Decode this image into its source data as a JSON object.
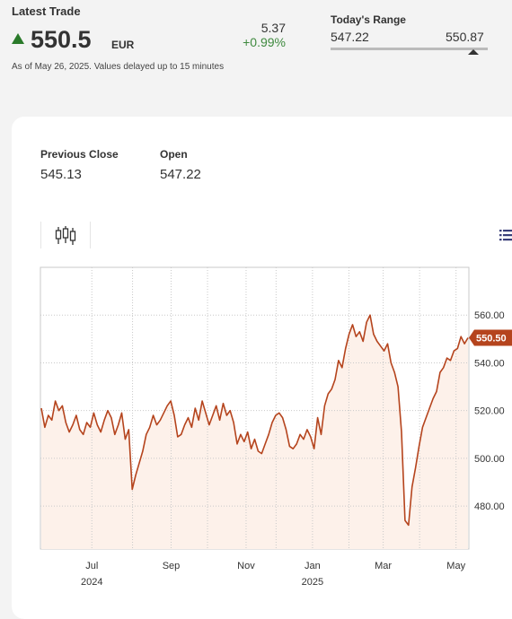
{
  "quote": {
    "latest_trade_label": "Latest Trade",
    "price": "550.5",
    "currency": "EUR",
    "change": "5.37",
    "change_pct": "+0.99%",
    "as_of": "As of May 26, 2025. Values delayed up to 15 minutes",
    "direction_icon": "up-triangle-icon",
    "up_color": "#2a7a2a"
  },
  "range": {
    "label": "Today's Range",
    "low": "547.22",
    "high": "550.87",
    "position": 0.91
  },
  "stats": {
    "prev_close_label": "Previous Close",
    "prev_close": "545.13",
    "open_label": "Open",
    "open": "547.22"
  },
  "toolbar": {
    "chart_type_icon": "candlestick-icon",
    "menu_icon": "list-menu-icon"
  },
  "chart_data": {
    "type": "area",
    "line_color": "#b5441d",
    "fill_color": "#fdf1ea",
    "ylim": [
      462,
      580
    ],
    "y_ticks": [
      "560.00",
      "540.00",
      "520.00",
      "500.00",
      "480.00"
    ],
    "y_tick_values": [
      560,
      540,
      520,
      500,
      480
    ],
    "x_ticks": [
      {
        "label": "Jul",
        "sub": "2024",
        "x": 0.12
      },
      {
        "label": "Sep",
        "sub": "",
        "x": 0.305
      },
      {
        "label": "Nov",
        "sub": "",
        "x": 0.48
      },
      {
        "label": "Jan",
        "sub": "2025",
        "x": 0.635
      },
      {
        "label": "Mar",
        "sub": "",
        "x": 0.8
      },
      {
        "label": "May",
        "sub": "",
        "x": 0.97
      }
    ],
    "last_value_label": "550.50",
    "last_value": 550.5,
    "values": [
      521,
      513,
      518,
      516,
      524,
      520,
      522,
      515,
      511,
      514,
      518,
      512,
      510,
      515,
      513,
      519,
      514,
      511,
      516,
      520,
      517,
      510,
      514,
      519,
      508,
      512,
      487,
      493,
      498,
      503,
      510,
      513,
      518,
      514,
      516,
      519,
      522,
      524,
      518,
      509,
      510,
      514,
      517,
      513,
      521,
      516,
      524,
      519,
      514,
      518,
      522,
      516,
      523,
      518,
      520,
      515,
      506,
      510,
      507,
      511,
      504,
      508,
      503,
      502,
      506,
      510,
      515,
      518,
      519,
      517,
      512,
      505,
      504,
      506,
      510,
      508,
      512,
      509,
      504,
      517,
      510,
      522,
      527,
      529,
      533,
      541,
      538,
      546,
      552,
      556,
      551,
      553,
      549,
      557,
      560,
      552,
      549,
      547,
      545,
      548,
      540,
      536,
      530,
      511,
      474,
      472,
      488,
      496,
      505,
      513,
      517,
      521,
      525,
      528,
      536,
      538,
      542,
      541,
      545,
      546,
      551,
      548,
      550.5
    ]
  }
}
